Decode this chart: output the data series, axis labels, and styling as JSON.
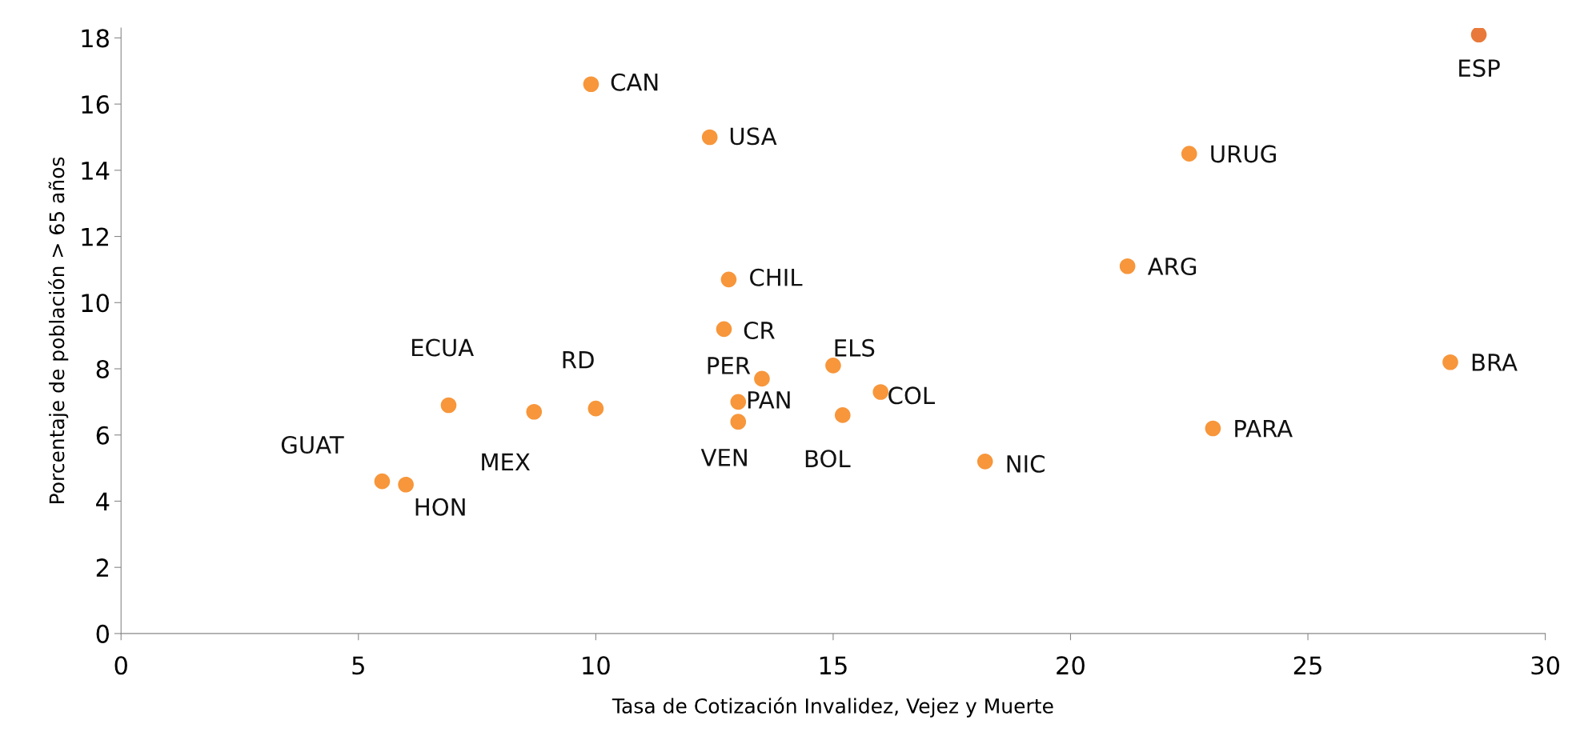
{
  "chart_data": {
    "type": "scatter",
    "xlabel": "Tasa de Cotización Invalidez, Vejez y Muerte",
    "ylabel": "Porcentaje de población > 65 años",
    "xlim": [
      0,
      30
    ],
    "xticks": [
      0,
      5,
      10,
      15,
      20,
      25,
      30
    ],
    "ylim": [
      0,
      18.3
    ],
    "yticks": [
      0,
      2,
      4,
      6,
      8,
      10,
      12,
      14,
      16,
      18
    ],
    "grid": false,
    "marker": "circle",
    "series": [
      {
        "x": [
          28.6,
          9.9,
          12.4,
          22.5,
          21.2,
          12.8,
          12.7,
          15.0,
          28.0,
          6.9,
          10.0,
          8.7,
          13.5,
          13.0,
          13.0,
          16.0,
          15.2,
          18.2,
          23.0,
          5.5,
          6.0
        ],
        "values": [
          18.1,
          16.6,
          15.0,
          14.5,
          11.1,
          10.7,
          9.2,
          8.1,
          8.2,
          6.9,
          6.8,
          6.7,
          7.7,
          7.0,
          6.4,
          7.3,
          6.6,
          5.2,
          6.2,
          4.6,
          4.5
        ],
        "colors": [
          "#e8793a",
          "#f7963b",
          "#f7963b",
          "#f7963b",
          "#f7963b",
          "#f7963b",
          "#f7963b",
          "#f7963b",
          "#f7963b",
          "#f7963b",
          "#f7963b",
          "#f7963b",
          "#f7963b",
          "#f7963b",
          "#f7963b",
          "#f7963b",
          "#f7963b",
          "#f7963b",
          "#f7963b",
          "#f7963b",
          "#f7963b"
        ],
        "value_labels": [
          "ESP",
          "CAN",
          "USA",
          "URUG",
          "ARG",
          "CHIL",
          "CR",
          "ELS",
          "BRA",
          "ECUA",
          "RD",
          "MEX",
          "PER",
          "PAN",
          "VEN",
          "COL",
          "BOL",
          "NIC",
          "PARA",
          "GUAT",
          "HON"
        ]
      }
    ]
  }
}
